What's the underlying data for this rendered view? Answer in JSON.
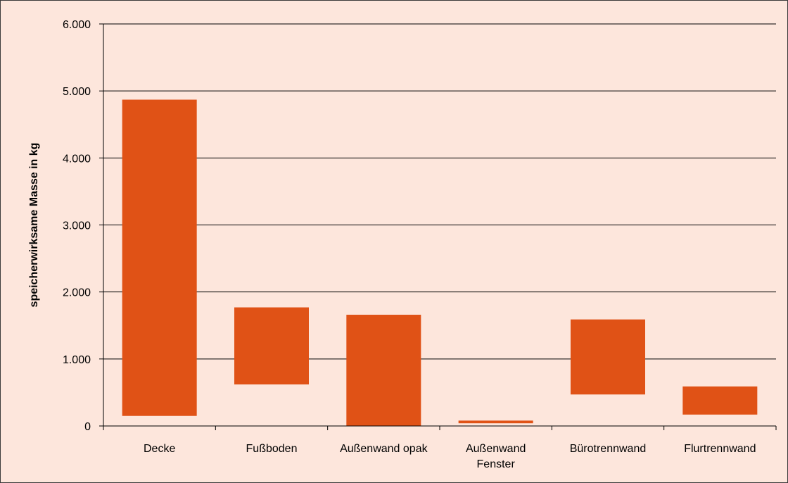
{
  "chart_data": {
    "type": "bar",
    "subtype": "floating",
    "title": "",
    "xlabel": "",
    "ylabel": "speicherwirksame  Masse  in  kg",
    "ylim": [
      0,
      6000
    ],
    "yticks": [
      0,
      1000,
      2000,
      3000,
      4000,
      5000,
      6000
    ],
    "ytick_labels": [
      "0",
      "1.000",
      "2.000",
      "3.000",
      "4.000",
      "5.000",
      "6.000"
    ],
    "grid": "horizontal",
    "categories": [
      [
        "Decke"
      ],
      [
        "Fußboden"
      ],
      [
        "Außenwand opak"
      ],
      [
        "Außenwand",
        "Fenster"
      ],
      [
        "Bürotrennwand"
      ],
      [
        "Flurtrennwand"
      ]
    ],
    "series": [
      {
        "color": "#e05216",
        "low": [
          150,
          620,
          0,
          40,
          470,
          170
        ],
        "high": [
          4870,
          1770,
          1660,
          80,
          1590,
          590
        ]
      }
    ]
  }
}
